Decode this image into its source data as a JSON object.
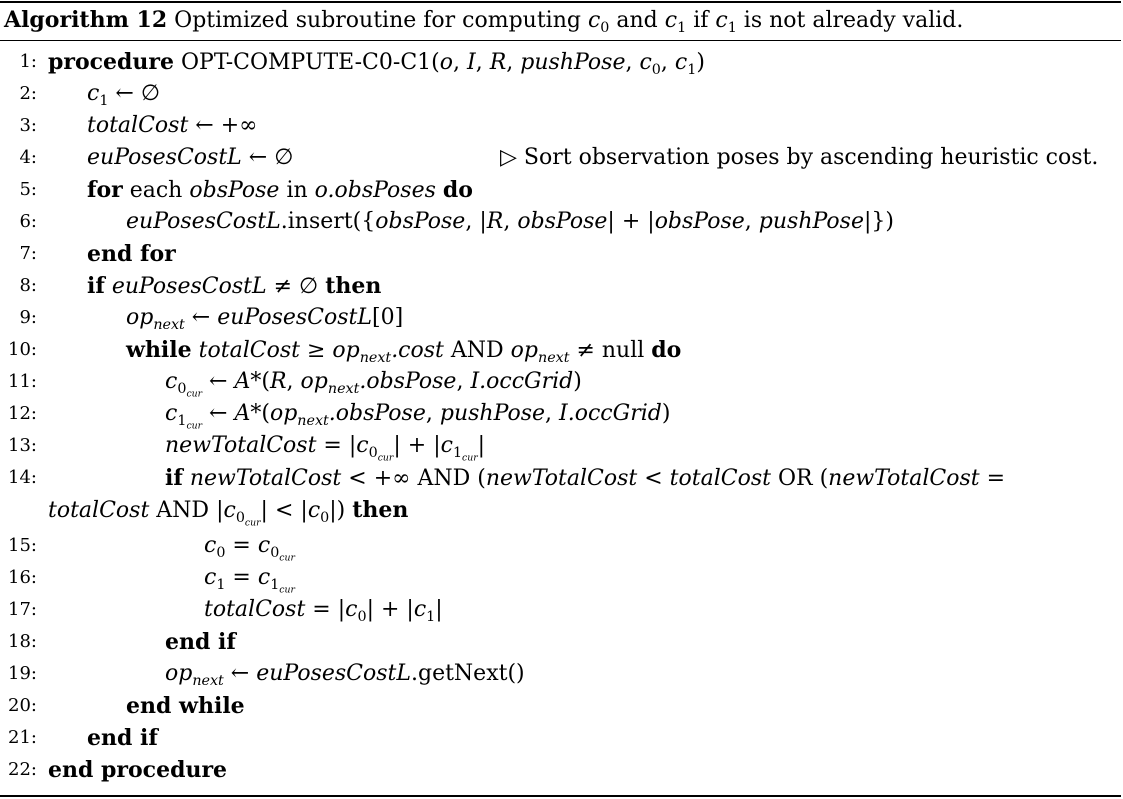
{
  "caption": {
    "label": "Algorithm 12",
    "text_a": "Optimized subroutine for computing ",
    "c": "c",
    "s0": "0",
    "and": " and ",
    "s1": "1",
    "if": " if ",
    "tail": " is not already valid."
  },
  "kw": {
    "procedure": "procedure",
    "for": "for",
    "each": " each ",
    "in": " in ",
    "do": "do",
    "end_for": "end for",
    "if": "if",
    "then": "then",
    "while": "while",
    "end_if": "end if",
    "end_while": "end while",
    "end_procedure": "end procedure"
  },
  "sym": {
    "larrow": " ← ",
    "empty": "∅",
    "infty": "+∞",
    "ge": " ≥ ",
    "ne": " ≠ ",
    "lt": " < ",
    "eq": " = ",
    "plus": " + ",
    "bar": "|",
    "AND": " AND ",
    "OR": " OR ",
    "null": " null ",
    "comma": ", ",
    "lbrace": "({",
    "rbrace": "})",
    "lparen": "(",
    "rparen": ")",
    "idx0": "[0]",
    "triangle": "▷"
  },
  "vars": {
    "c": "c",
    "o": "o",
    "I": "I",
    "R": "R",
    "pushPose": "pushPose",
    "totalCost": "totalCost",
    "euPosesCostL": "euPosesCostL",
    "obsPose": "obsPose",
    "obsPoses": "o.obsPoses",
    "op": "op",
    "next": "next",
    "cur": "cur",
    "cost": ".cost",
    "obsPoseField": ".obsPose",
    "occGrid": "I.occGrid",
    "newTotalCost": "newTotalCost",
    "astar": "A*"
  },
  "text": {
    "proc_name": "OPT-COMPUTE-C0-C1",
    "insert": ".insert",
    "getNext": ".getNext()",
    "comment": "Sort observation poses by ascending heuristic cost."
  },
  "line_numbers": [
    "1:",
    "2:",
    "3:",
    "4:",
    "5:",
    "6:",
    "7:",
    "8:",
    "9:",
    "10:",
    "11:",
    "12:",
    "13:",
    "14:",
    "15:",
    "16:",
    "17:",
    "18:",
    "19:",
    "20:",
    "21:",
    "22:"
  ]
}
